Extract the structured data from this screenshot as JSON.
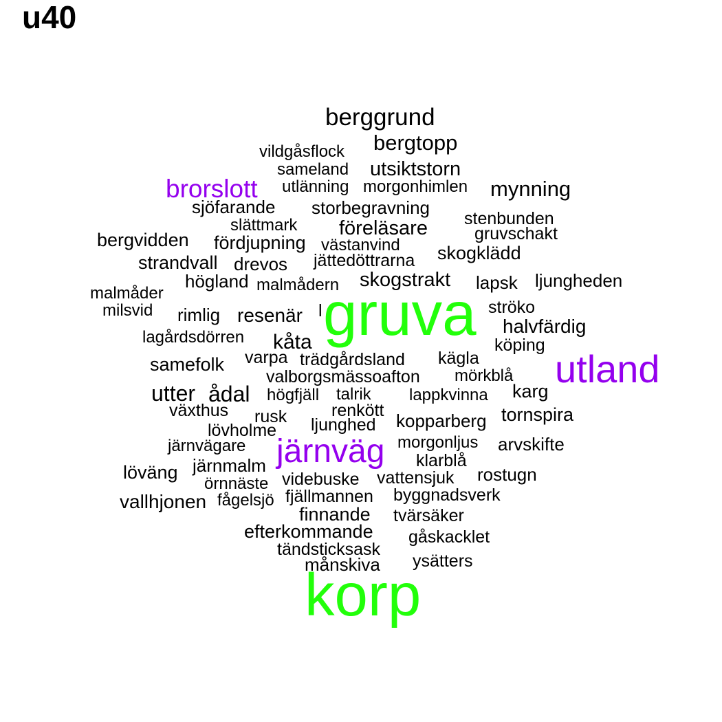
{
  "title": "u40",
  "colors": {
    "black": "#000000",
    "purple": "#9400ee",
    "green": "#22ff0a"
  },
  "words": [
    {
      "text": "berggrund",
      "color": "black"
    },
    {
      "text": "bergtopp",
      "color": "black"
    },
    {
      "text": "vildgåsflock",
      "color": "black"
    },
    {
      "text": "sameland",
      "color": "black"
    },
    {
      "text": "utsiktstorn",
      "color": "black"
    },
    {
      "text": "brorslott",
      "color": "purple"
    },
    {
      "text": "utlänning",
      "color": "black"
    },
    {
      "text": "morgonhimlen",
      "color": "black"
    },
    {
      "text": "mynning",
      "color": "black"
    },
    {
      "text": "sjöfarande",
      "color": "black"
    },
    {
      "text": "storbegravning",
      "color": "black"
    },
    {
      "text": "stenbunden",
      "color": "black"
    },
    {
      "text": "slättmark",
      "color": "black"
    },
    {
      "text": "föreläsare",
      "color": "black"
    },
    {
      "text": "gruvschakt",
      "color": "black"
    },
    {
      "text": "bergvidden",
      "color": "black"
    },
    {
      "text": "fördjupning",
      "color": "black"
    },
    {
      "text": "västanvind",
      "color": "black"
    },
    {
      "text": "skogklädd",
      "color": "black"
    },
    {
      "text": "strandvall",
      "color": "black"
    },
    {
      "text": "drevos",
      "color": "black"
    },
    {
      "text": "jättedöttrarna",
      "color": "black"
    },
    {
      "text": "högland",
      "color": "black"
    },
    {
      "text": "malmådern",
      "color": "black"
    },
    {
      "text": "skogstrakt",
      "color": "black"
    },
    {
      "text": "lapsk",
      "color": "black"
    },
    {
      "text": "ljungheden",
      "color": "black"
    },
    {
      "text": "malmåder",
      "color": "black"
    },
    {
      "text": "gruva",
      "color": "green"
    },
    {
      "text": "milsvid",
      "color": "black"
    },
    {
      "text": "rimlig",
      "color": "black"
    },
    {
      "text": "resenär",
      "color": "black"
    },
    {
      "text": "l",
      "color": "black"
    },
    {
      "text": "ströko",
      "color": "black"
    },
    {
      "text": "halvfärdig",
      "color": "black"
    },
    {
      "text": "lagårdsdörren",
      "color": "black"
    },
    {
      "text": "kåta",
      "color": "black"
    },
    {
      "text": "köping",
      "color": "black"
    },
    {
      "text": "samefolk",
      "color": "black"
    },
    {
      "text": "varpa",
      "color": "black"
    },
    {
      "text": "trädgårdsland",
      "color": "black"
    },
    {
      "text": "kägla",
      "color": "black"
    },
    {
      "text": "utland",
      "color": "purple"
    },
    {
      "text": "valborgsmässoafton",
      "color": "black"
    },
    {
      "text": "mörkblå",
      "color": "black"
    },
    {
      "text": "utter",
      "color": "black"
    },
    {
      "text": "ådal",
      "color": "black"
    },
    {
      "text": "högfjäll",
      "color": "black"
    },
    {
      "text": "talrik",
      "color": "black"
    },
    {
      "text": "lappkvinna",
      "color": "black"
    },
    {
      "text": "karg",
      "color": "black"
    },
    {
      "text": "växthus",
      "color": "black"
    },
    {
      "text": "renkött",
      "color": "black"
    },
    {
      "text": "tornspira",
      "color": "black"
    },
    {
      "text": "rusk",
      "color": "black"
    },
    {
      "text": "kopparberg",
      "color": "black"
    },
    {
      "text": "lövholme",
      "color": "black"
    },
    {
      "text": "ljunghed",
      "color": "black"
    },
    {
      "text": "järnvägare",
      "color": "black"
    },
    {
      "text": "järnväg",
      "color": "purple"
    },
    {
      "text": "morgonljus",
      "color": "black"
    },
    {
      "text": "arvskifte",
      "color": "black"
    },
    {
      "text": "klarblå",
      "color": "black"
    },
    {
      "text": "järnmalm",
      "color": "black"
    },
    {
      "text": "löväng",
      "color": "black"
    },
    {
      "text": "rostugn",
      "color": "black"
    },
    {
      "text": "örnnäste",
      "color": "black"
    },
    {
      "text": "videbuske",
      "color": "black"
    },
    {
      "text": "vattensjuk",
      "color": "black"
    },
    {
      "text": "vallhjonen",
      "color": "black"
    },
    {
      "text": "fågelsjö",
      "color": "black"
    },
    {
      "text": "fjällmannen",
      "color": "black"
    },
    {
      "text": "byggnadsverk",
      "color": "black"
    },
    {
      "text": "finnande",
      "color": "black"
    },
    {
      "text": "tvärsäker",
      "color": "black"
    },
    {
      "text": "efterkommande",
      "color": "black"
    },
    {
      "text": "gåskacklet",
      "color": "black"
    },
    {
      "text": "tändsticksask",
      "color": "black"
    },
    {
      "text": "ysätters",
      "color": "black"
    },
    {
      "text": "månskiva",
      "color": "black"
    },
    {
      "text": "korp",
      "color": "green"
    }
  ]
}
